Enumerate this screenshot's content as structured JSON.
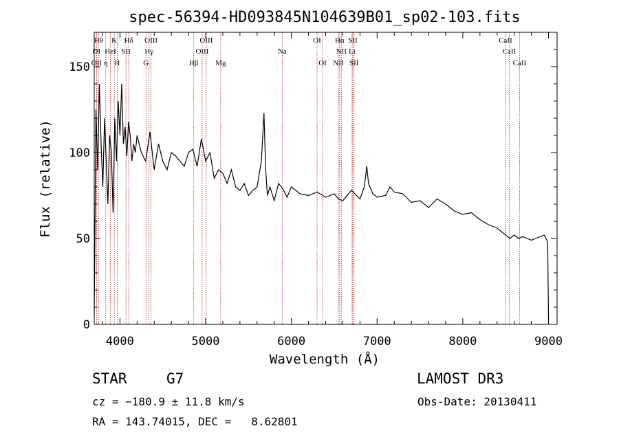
{
  "chart_data": {
    "type": "line",
    "title": "spec-56394-HD093845N104639B01_sp02-103.fits",
    "xlabel": "Wavelength (Å)",
    "ylabel": "Flux (relative)",
    "xlim": [
      3700,
      9100
    ],
    "ylim": [
      0,
      170
    ],
    "x_ticks": [
      4000,
      5000,
      6000,
      7000,
      8000,
      9000
    ],
    "y_ticks": [
      0,
      50,
      100,
      150
    ],
    "series": [
      {
        "name": "flux",
        "x": [
          3700,
          3720,
          3740,
          3760,
          3780,
          3800,
          3820,
          3840,
          3860,
          3880,
          3900,
          3920,
          3940,
          3960,
          3980,
          4000,
          4020,
          4040,
          4060,
          4080,
          4100,
          4120,
          4140,
          4160,
          4180,
          4200,
          4250,
          4300,
          4350,
          4400,
          4450,
          4500,
          4550,
          4600,
          4650,
          4700,
          4750,
          4800,
          4850,
          4900,
          4950,
          5000,
          5050,
          5100,
          5150,
          5200,
          5250,
          5300,
          5350,
          5400,
          5450,
          5500,
          5550,
          5600,
          5650,
          5680,
          5700,
          5720,
          5750,
          5800,
          5850,
          5900,
          5950,
          6000,
          6100,
          6200,
          6300,
          6400,
          6500,
          6550,
          6600,
          6700,
          6800,
          6850,
          6880,
          6900,
          6950,
          7000,
          7100,
          7150,
          7200,
          7300,
          7400,
          7500,
          7600,
          7700,
          7800,
          7900,
          8000,
          8100,
          8200,
          8300,
          8400,
          8500,
          8550,
          8600,
          8650,
          8700,
          8800,
          8900,
          8950,
          8990,
          9000
        ],
        "y": [
          5,
          125,
          90,
          140,
          105,
          80,
          120,
          95,
          70,
          110,
          100,
          65,
          120,
          95,
          130,
          110,
          140,
          105,
          115,
          98,
          118,
          110,
          95,
          105,
          100,
          110,
          100,
          95,
          112,
          90,
          105,
          95,
          90,
          100,
          98,
          95,
          92,
          100,
          102,
          92,
          108,
          95,
          100,
          85,
          90,
          88,
          82,
          90,
          80,
          78,
          82,
          75,
          78,
          80,
          95,
          123,
          90,
          75,
          80,
          72,
          82,
          79,
          74,
          80,
          76,
          75,
          77,
          74,
          76,
          73,
          72,
          78,
          73,
          80,
          92,
          82,
          76,
          74,
          75,
          80,
          77,
          76,
          71,
          72,
          68,
          73,
          70,
          66,
          64,
          65,
          61,
          58,
          56,
          52,
          50,
          52,
          50,
          51,
          49,
          51,
          52,
          48,
          3
        ]
      }
    ],
    "line_markers": [
      {
        "label": "Hθ",
        "x": 3750,
        "row": 1
      },
      {
        "label": "K",
        "x": 3934,
        "row": 1
      },
      {
        "label": "Hδ",
        "x": 4102,
        "row": 1
      },
      {
        "label": "OIII",
        "x": 4363,
        "row": 1
      },
      {
        "label": "OIII",
        "x": 5007,
        "row": 1
      },
      {
        "label": "OI",
        "x": 6300,
        "row": 1
      },
      {
        "label": "Hα",
        "x": 6563,
        "row": 1
      },
      {
        "label": "SII",
        "x": 6717,
        "row": 1
      },
      {
        "label": "CaII",
        "x": 8498,
        "row": 1
      },
      {
        "label": "OI",
        "x": 3727,
        "row": 2
      },
      {
        "label": "HeI",
        "x": 3889,
        "row": 2
      },
      {
        "label": "SII",
        "x": 4070,
        "row": 2
      },
      {
        "label": "Hγ",
        "x": 4340,
        "row": 2
      },
      {
        "label": "OIII",
        "x": 4959,
        "row": 2
      },
      {
        "label": "Na",
        "x": 5893,
        "row": 2
      },
      {
        "label": "NII",
        "x": 6583,
        "row": 2
      },
      {
        "label": "Li",
        "x": 6708,
        "row": 2
      },
      {
        "label": "CaII",
        "x": 8542,
        "row": 2
      },
      {
        "label": "OII",
        "x": 3727,
        "row": 3
      },
      {
        "label": "η",
        "x": 3835,
        "row": 3
      },
      {
        "label": "H",
        "x": 3968,
        "row": 3
      },
      {
        "label": "G",
        "x": 4304,
        "row": 3
      },
      {
        "label": "Hβ",
        "x": 4861,
        "row": 3
      },
      {
        "label": "Mg",
        "x": 5175,
        "row": 3
      },
      {
        "label": "OI",
        "x": 6364,
        "row": 3
      },
      {
        "label": "NII",
        "x": 6548,
        "row": 3
      },
      {
        "label": "SII",
        "x": 6731,
        "row": 3
      },
      {
        "label": "CaII",
        "x": 8662,
        "row": 3
      }
    ]
  },
  "info": {
    "class": "STAR",
    "subclass": "G7",
    "survey": "LAMOST DR3",
    "cz": "cz = −180.9 ± 11.8 km/s",
    "obs_date": "Obs-Date: 20130411",
    "radec": "RA = 143.74015, DEC =   8.62801"
  },
  "colors": {
    "line": "#000000",
    "marker": "#b22222",
    "axis": "#000000"
  }
}
